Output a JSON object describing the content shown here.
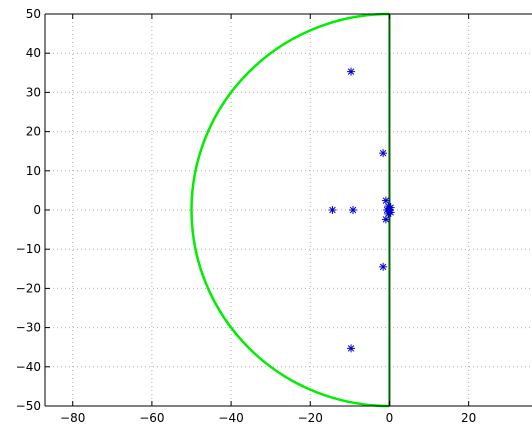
{
  "chart_data": {
    "type": "scatter",
    "title": "",
    "xlabel": "",
    "ylabel": "",
    "xlim": [
      -87,
      36
    ],
    "ylim": [
      -50,
      50
    ],
    "grid": true,
    "x_ticks": [
      -80,
      -60,
      -40,
      -20,
      0,
      20
    ],
    "y_ticks": [
      -50,
      -40,
      -30,
      -20,
      -10,
      0,
      10,
      20,
      30,
      40,
      50
    ],
    "x_tick_labels": [
      "−80",
      "−60",
      "−40",
      "−20",
      "0",
      "20"
    ],
    "y_tick_labels": [
      "−50",
      "−40",
      "−30",
      "−20",
      "−10",
      "0",
      "10",
      "20",
      "30",
      "40",
      "50"
    ],
    "series": [
      {
        "marker": "asterisk",
        "color": "#0000cc",
        "points": [
          {
            "x": -9.7,
            "y": 35.3
          },
          {
            "x": -9.7,
            "y": -35.3
          },
          {
            "x": -1.6,
            "y": 14.5
          },
          {
            "x": -1.6,
            "y": -14.5
          },
          {
            "x": -14.4,
            "y": 0
          },
          {
            "x": -9.2,
            "y": 0
          },
          {
            "x": -0.9,
            "y": 2.4
          },
          {
            "x": -0.9,
            "y": -2.4
          },
          {
            "x": -0.3,
            "y": 1.0
          },
          {
            "x": -0.3,
            "y": -1.0
          },
          {
            "x": 0.3,
            "y": 0.6
          },
          {
            "x": 0.3,
            "y": -0.6
          },
          {
            "x": -0.6,
            "y": 0
          },
          {
            "x": 0.1,
            "y": 0
          }
        ]
      }
    ],
    "boundary": {
      "semicircle": {
        "center": [
          0,
          0
        ],
        "radius": 50,
        "color": "#00ee00"
      },
      "vertical_line": {
        "x": 0,
        "color": "#006400"
      }
    }
  }
}
